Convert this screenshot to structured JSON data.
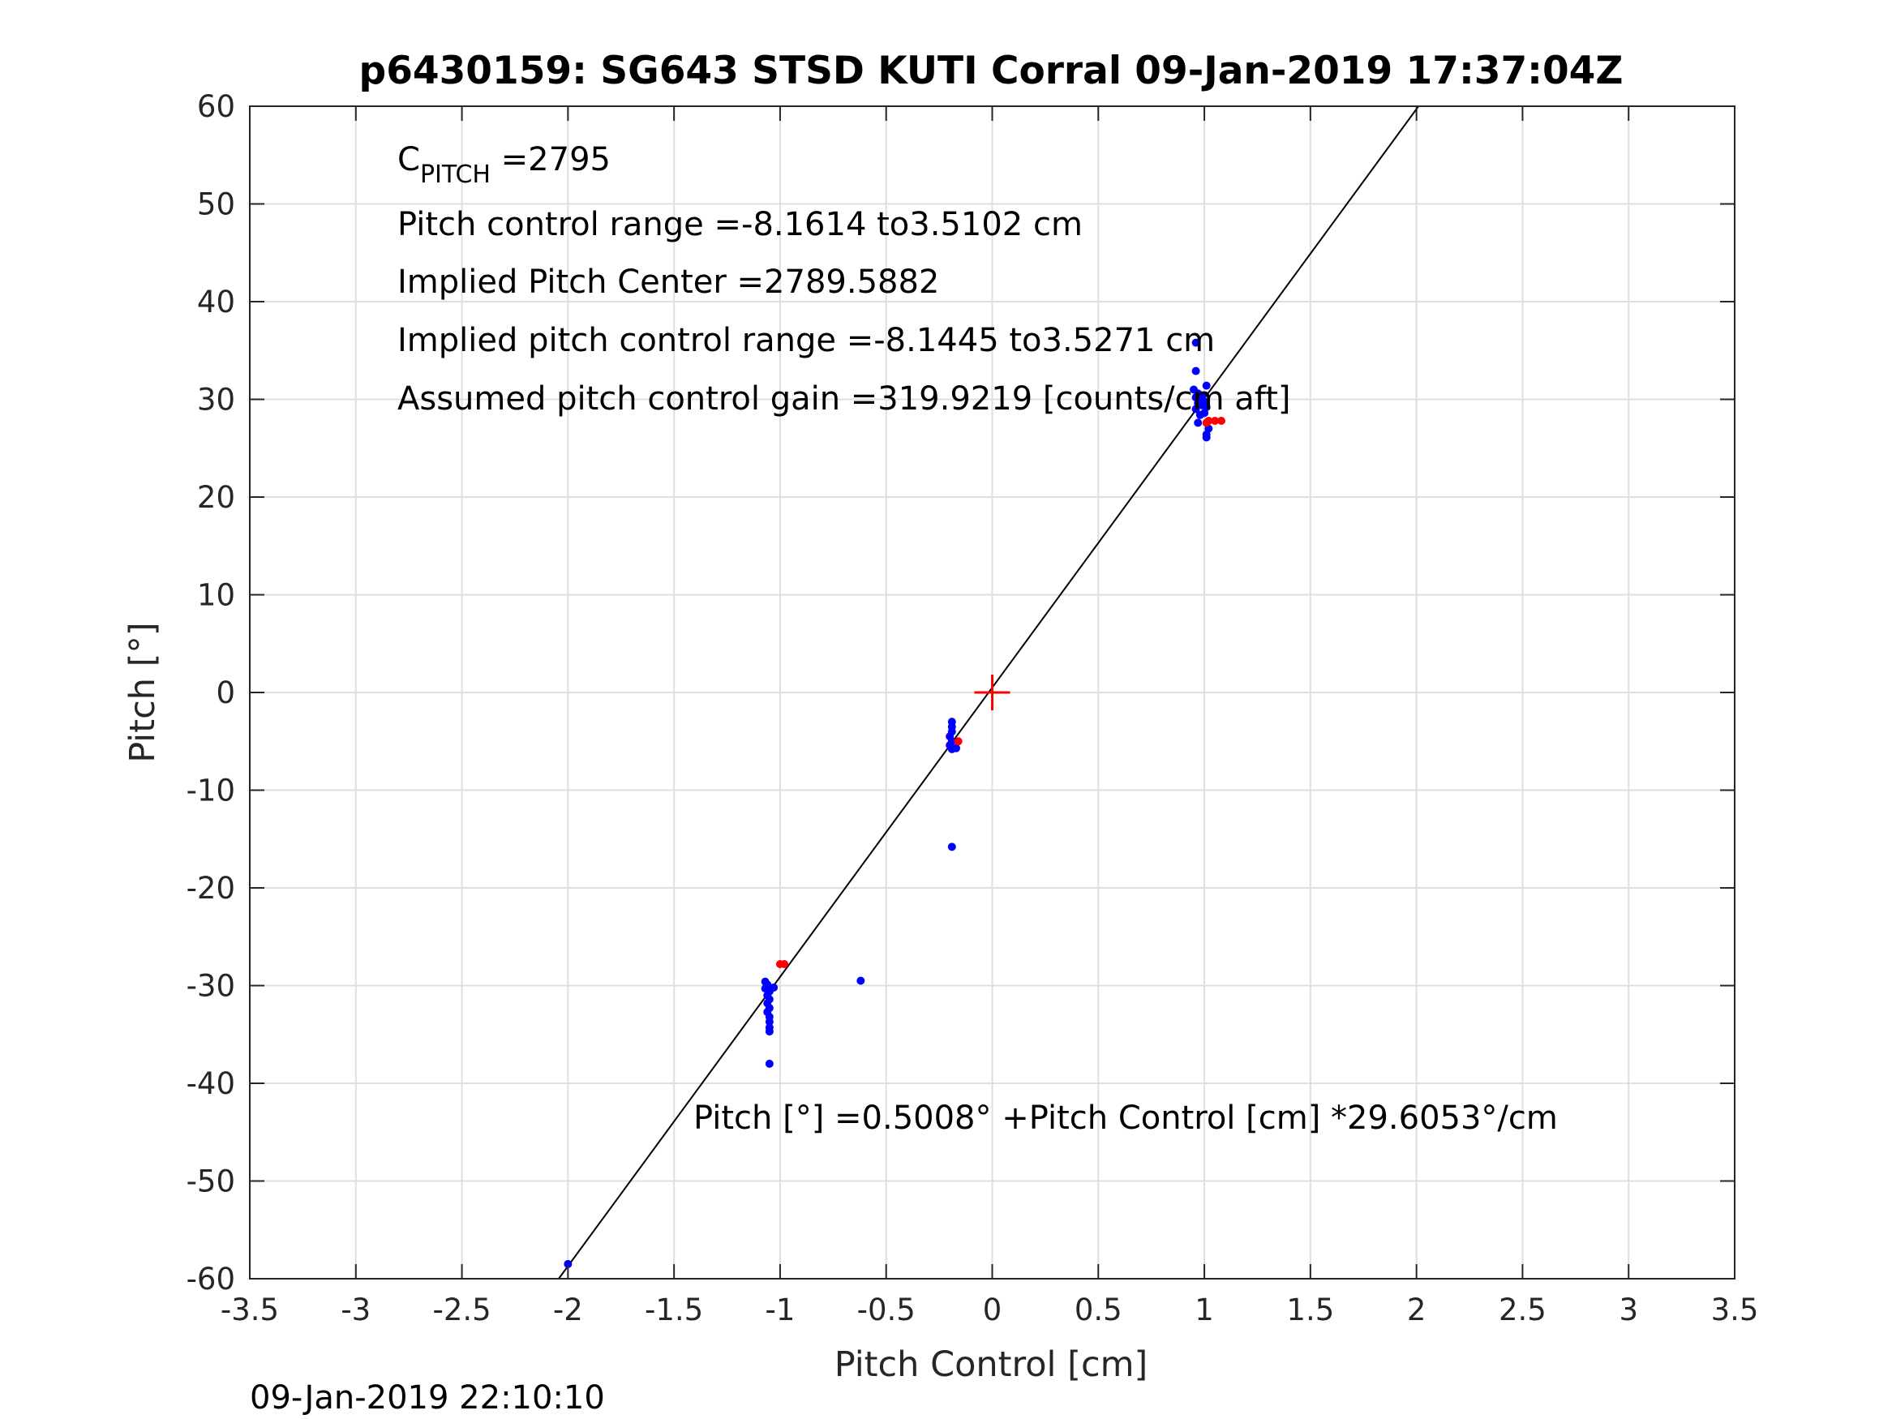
{
  "chart_data": {
    "type": "scatter",
    "title": "p6430159: SG643 STSD KUTI Corral 09-Jan-2019 17:37:04Z",
    "xlabel": "Pitch Control [cm]",
    "ylabel": "Pitch [°]",
    "xlim": [
      -3.5,
      3.5
    ],
    "ylim": [
      -60,
      60
    ],
    "xticks": [
      -3.5,
      -3,
      -2.5,
      -2,
      -1.5,
      -1,
      -0.5,
      0,
      0.5,
      1,
      1.5,
      2,
      2.5,
      3,
      3.5
    ],
    "xtick_labels": [
      "-3.5",
      "-3",
      "-2.5",
      "-2",
      "-1.5",
      "-1",
      "-0.5",
      "0",
      "0.5",
      "1",
      "1.5",
      "2",
      "2.5",
      "3",
      "3.5"
    ],
    "yticks": [
      -60,
      -50,
      -40,
      -30,
      -20,
      -10,
      0,
      10,
      20,
      30,
      40,
      50,
      60
    ],
    "ytick_labels": [
      "-60",
      "-50",
      "-40",
      "-30",
      "-20",
      "-10",
      "0",
      "10",
      "20",
      "30",
      "40",
      "50",
      "60"
    ],
    "grid": true,
    "fit_line": {
      "intercept": 0.5008,
      "slope": 29.6053
    },
    "center_marker": {
      "x": 0,
      "y": 0,
      "color": "#ff0000"
    },
    "series": [
      {
        "color": "#0000ff",
        "points": [
          [
            0.96,
            35.8
          ],
          [
            0.96,
            32.9
          ],
          [
            1.01,
            31.4
          ],
          [
            0.95,
            31.0
          ],
          [
            0.97,
            30.6
          ],
          [
            0.99,
            30.4
          ],
          [
            0.96,
            30.2
          ],
          [
            0.98,
            30.0
          ],
          [
            1.0,
            29.8
          ],
          [
            0.97,
            29.6
          ],
          [
            0.99,
            29.4
          ],
          [
            1.01,
            29.2
          ],
          [
            0.96,
            29.0
          ],
          [
            1.0,
            28.6
          ],
          [
            0.98,
            28.4
          ],
          [
            0.97,
            27.6
          ],
          [
            1.02,
            27.0
          ],
          [
            1.01,
            26.4
          ],
          [
            1.01,
            26.1
          ],
          [
            -0.19,
            -3.0
          ],
          [
            -0.19,
            -3.5
          ],
          [
            -0.19,
            -4.0
          ],
          [
            -0.2,
            -4.5
          ],
          [
            -0.19,
            -5.0
          ],
          [
            -0.2,
            -5.4
          ],
          [
            -0.19,
            -5.8
          ],
          [
            -0.17,
            -5.7
          ],
          [
            -0.19,
            -15.8
          ],
          [
            -0.62,
            -29.5
          ],
          [
            -1.07,
            -29.6
          ],
          [
            -1.06,
            -29.9
          ],
          [
            -1.07,
            -30.3
          ],
          [
            -1.05,
            -30.6
          ],
          [
            -1.06,
            -31.0
          ],
          [
            -1.05,
            -31.4
          ],
          [
            -1.06,
            -31.8
          ],
          [
            -1.05,
            -32.3
          ],
          [
            -1.06,
            -32.7
          ],
          [
            -1.05,
            -33.2
          ],
          [
            -1.05,
            -33.7
          ],
          [
            -1.05,
            -34.3
          ],
          [
            -1.05,
            -34.7
          ],
          [
            -1.03,
            -30.2
          ],
          [
            -1.05,
            -38.0
          ],
          [
            -2.0,
            -58.5
          ]
        ]
      },
      {
        "color": "#ff0000",
        "points": [
          [
            1.02,
            27.8
          ],
          [
            1.05,
            27.8
          ],
          [
            1.08,
            27.8
          ],
          [
            1.01,
            27.6
          ],
          [
            -0.16,
            -5.0
          ],
          [
            -1.0,
            -27.8
          ],
          [
            -0.98,
            -27.8
          ]
        ]
      }
    ],
    "annotations": {
      "cpitch_main": "C",
      "cpitch_sub": "PITCH",
      "cpitch_value": " =2795",
      "line2": "Pitch control range =-8.1614 to3.5102 cm",
      "line3": "Implied Pitch Center =2789.5882",
      "line4": "Implied pitch control range =-8.1445 to3.5271 cm",
      "line5": "Assumed pitch control gain =319.9219 [counts/cm aft]",
      "fit_equation": "Pitch [°] =0.5008° +Pitch Control [cm] *29.6053°/cm"
    }
  },
  "footer": {
    "timestamp": "09-Jan-2019 22:10:10"
  }
}
